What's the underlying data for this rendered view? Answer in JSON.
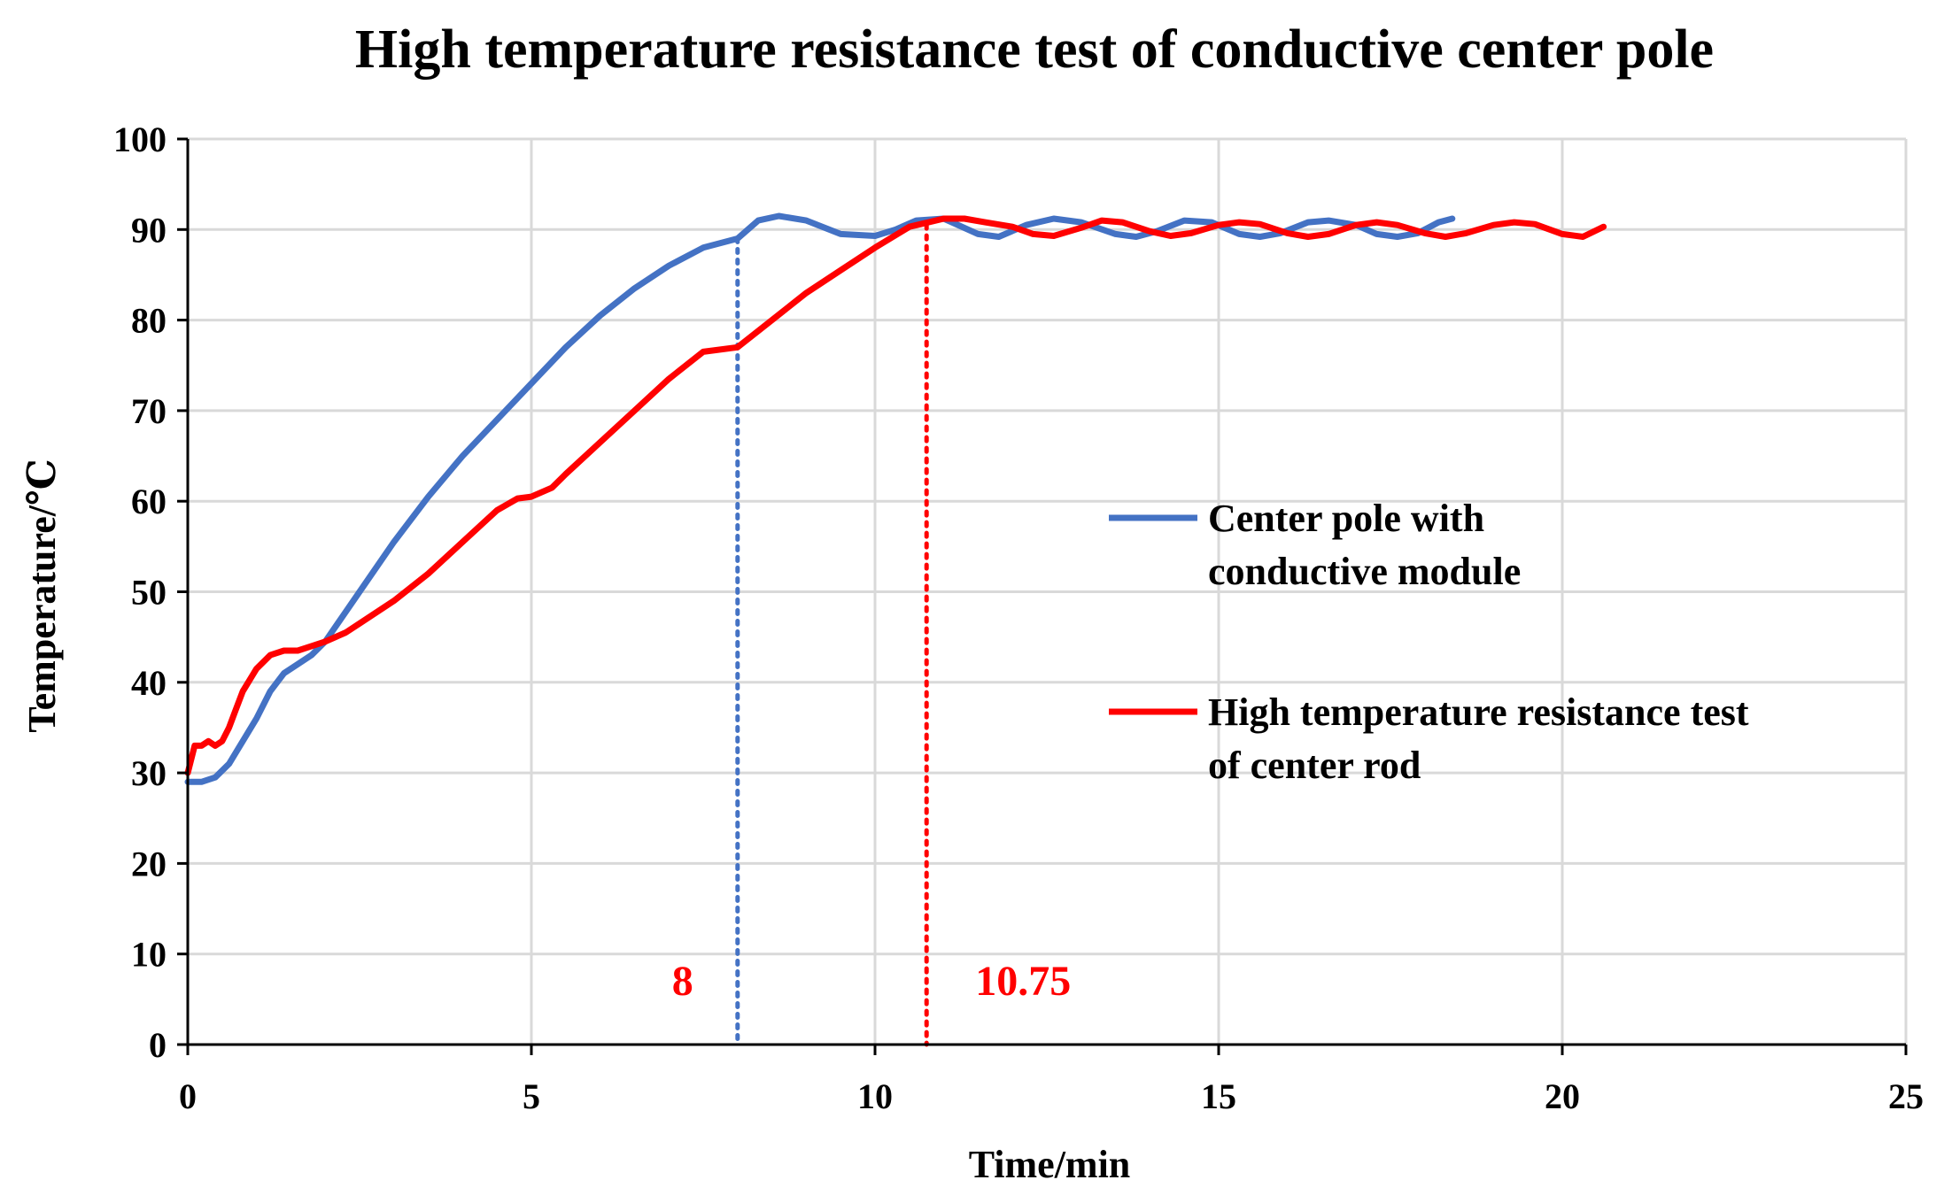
{
  "chart_data": {
    "type": "line",
    "title": "High temperature resistance test of conductive center pole",
    "xlabel": "Time/min",
    "ylabel": "Temperature/℃",
    "xlim": [
      0,
      25
    ],
    "ylim": [
      0,
      100
    ],
    "x_ticks": [
      0,
      5,
      10,
      15,
      20,
      25
    ],
    "y_ticks": [
      0,
      10,
      20,
      30,
      40,
      50,
      60,
      70,
      80,
      90,
      100
    ],
    "grid": true,
    "legend_position": "right",
    "series": [
      {
        "name": "Center pole with conductive module",
        "color": "#4472C4",
        "x": [
          0,
          0.2,
          0.4,
          0.6,
          0.8,
          1.0,
          1.2,
          1.4,
          1.6,
          1.8,
          2.0,
          2.5,
          3.0,
          3.5,
          4.0,
          4.5,
          5.0,
          5.5,
          6.0,
          6.5,
          7.0,
          7.5,
          8.0,
          8.3,
          8.6,
          9.0,
          9.5,
          10.0,
          10.3,
          10.6,
          11.0,
          11.5,
          11.8,
          12.2,
          12.6,
          13.0,
          13.5,
          13.8,
          14.1,
          14.5,
          14.9,
          15.3,
          15.6,
          15.9,
          16.3,
          16.6,
          17.0,
          17.3,
          17.6,
          17.9,
          18.2,
          18.4
        ],
        "y": [
          29,
          29,
          29.5,
          31,
          33.5,
          36,
          39,
          41,
          42,
          43,
          44.5,
          50,
          55.5,
          60.5,
          65,
          69,
          73,
          77,
          80.5,
          83.5,
          86,
          88,
          89,
          91,
          91.5,
          91,
          89.5,
          89.3,
          90,
          91,
          91.2,
          89.5,
          89.2,
          90.5,
          91.2,
          90.8,
          89.5,
          89.2,
          89.8,
          91,
          90.8,
          89.5,
          89.2,
          89.6,
          90.8,
          91,
          90.5,
          89.5,
          89.2,
          89.6,
          90.8,
          91.2
        ]
      },
      {
        "name": "High temperature resistance test of center rod",
        "color": "#FF0000",
        "x": [
          0,
          0.1,
          0.2,
          0.3,
          0.4,
          0.5,
          0.6,
          0.7,
          0.8,
          1.0,
          1.2,
          1.4,
          1.6,
          1.8,
          2.0,
          2.3,
          2.5,
          3.0,
          3.5,
          4.0,
          4.5,
          4.8,
          5.0,
          5.3,
          5.5,
          6.0,
          6.5,
          7.0,
          7.5,
          8.0,
          8.5,
          9.0,
          9.5,
          10.0,
          10.5,
          11.0,
          11.3,
          11.6,
          12.0,
          12.3,
          12.6,
          13.0,
          13.3,
          13.6,
          14.0,
          14.3,
          14.6,
          15.0,
          15.3,
          15.6,
          16.0,
          16.3,
          16.6,
          17.0,
          17.3,
          17.6,
          18.0,
          18.3,
          18.6,
          19.0,
          19.3,
          19.6,
          20.0,
          20.3,
          20.6
        ],
        "y": [
          30,
          33,
          33,
          33.5,
          33,
          33.5,
          35,
          37,
          39,
          41.5,
          43,
          43.5,
          43.5,
          44,
          44.5,
          45.5,
          46.5,
          49,
          52,
          55.5,
          59,
          60.3,
          60.5,
          61.5,
          63,
          66.5,
          70,
          73.5,
          76.5,
          77,
          80,
          83,
          85.5,
          88,
          90.3,
          91.2,
          91.2,
          90.8,
          90.3,
          89.5,
          89.3,
          90.2,
          91,
          90.8,
          89.8,
          89.3,
          89.6,
          90.5,
          90.8,
          90.6,
          89.6,
          89.2,
          89.5,
          90.5,
          90.8,
          90.5,
          89.6,
          89.2,
          89.6,
          90.5,
          90.8,
          90.6,
          89.5,
          89.2,
          90.3
        ]
      }
    ],
    "markers": [
      {
        "x": 8,
        "label": "8",
        "color": "#4472C4",
        "label_color": "#FF0000",
        "label_side": "left"
      },
      {
        "x": 10.75,
        "label": "10.75",
        "color": "#FF0000",
        "label_color": "#FF0000",
        "label_side": "right"
      }
    ]
  }
}
